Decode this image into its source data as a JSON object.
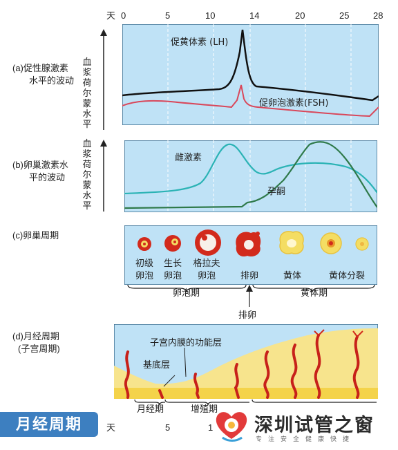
{
  "axis": {
    "day_label": "天",
    "ticks": [
      "0",
      "5",
      "10",
      "14",
      "20",
      "25",
      "28"
    ],
    "bottom_ticks": [
      "5",
      "1"
    ]
  },
  "panel_a": {
    "label": "(a)促性腺激素水平的波动",
    "label_lines": [
      "(a)促性腺激素",
      "水平的波动"
    ],
    "y_label": "血浆荷尔蒙水平",
    "y_chars": [
      "血",
      "浆",
      "荷",
      "尔",
      "蒙",
      "水",
      "平"
    ],
    "lh_label": "促黄体素 (LH)",
    "fsh_label": "促卵泡激素(FSH)"
  },
  "panel_b": {
    "label_lines": [
      "(b)卵巢激素水",
      "平的波动"
    ],
    "y_chars": [
      "血",
      "浆",
      "荷",
      "尔",
      "蒙",
      "水",
      "平"
    ],
    "estrogen_label": "雌激素",
    "progesterone_label": "孕酮"
  },
  "panel_c": {
    "label": "(c)卵巢周期",
    "stages": [
      {
        "line1": "初级",
        "line2": "卵泡"
      },
      {
        "line1": "生长",
        "line2": "卵泡"
      },
      {
        "line1": "格拉夫",
        "line2": "卵泡"
      },
      {
        "line1": "排卵",
        "line2": ""
      },
      {
        "line1": "黄体",
        "line2": ""
      },
      {
        "line1": "黄体分裂",
        "line2": ""
      }
    ],
    "follicular_phase": "卵泡期",
    "ovulation": "排卵",
    "luteal_phase": "黄体期"
  },
  "panel_d": {
    "label_lines": [
      "(d)月经周期",
      "(子宫周期)"
    ],
    "functional_layer": "子宫内膜的功能层",
    "basal_layer": "基底层",
    "menstrual_phase": "月经期",
    "proliferative_phase": "增殖期"
  },
  "banner": {
    "text": "月经周期"
  },
  "watermark": {
    "title": "深圳试管之窗",
    "subtitle": "专注安全健康快捷"
  },
  "colors": {
    "panel_bg": "#bfe2f6",
    "lh": "#111111",
    "fsh": "#d9475a",
    "estrogen": "#2bb3b5",
    "progesterone": "#2f7a4a",
    "follicle": "#d22a1c",
    "corpus": "#f4dd63",
    "endometrium": "#f7e48d",
    "banner": "#3d7fc0"
  }
}
